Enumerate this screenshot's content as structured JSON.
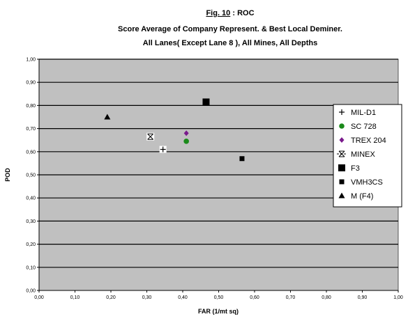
{
  "chart_data": {
    "type": "scatter",
    "title_prefix": "Fig. 10",
    "title_suffix": " : ROC",
    "subtitle_lines": [
      "Score Average of Company Represent. & Best Local Deminer.",
      "All Lanes( Except Lane 8 ), All Mines, All Depths"
    ],
    "xlabel": "FAR (1/mt sq)",
    "ylabel": "POD",
    "xlim": [
      0,
      1
    ],
    "ylim": [
      0,
      1
    ],
    "x_ticks": [
      "0,00",
      "0,10",
      "0,20",
      "0,30",
      "0,40",
      "0,50",
      "0,60",
      "0,70",
      "0,80",
      "0,90",
      "1,00"
    ],
    "y_ticks": [
      "0,00",
      "0,10",
      "0,20",
      "0,30",
      "0,40",
      "0,50",
      "0,60",
      "0,70",
      "0,80",
      "0,90",
      "1,00"
    ],
    "grid": "horizontal",
    "plot_background": "#c0c0c0",
    "legend_position": "right",
    "series": [
      {
        "name": "MIL-D1",
        "marker": "plus",
        "color": "#000000",
        "x": 0.345,
        "y": 0.61
      },
      {
        "name": "SC 728",
        "marker": "circle",
        "color": "#1a8a1a",
        "x": 0.41,
        "y": 0.645
      },
      {
        "name": "TREX 204",
        "marker": "diamond",
        "color": "#7a1a8c",
        "x": 0.41,
        "y": 0.68
      },
      {
        "name": "MINEX",
        "marker": "star",
        "color": "#000000",
        "x": 0.31,
        "y": 0.665
      },
      {
        "name": "F3",
        "marker": "square-lg",
        "color": "#000000",
        "x": 0.465,
        "y": 0.815
      },
      {
        "name": "VMH3CS",
        "marker": "square",
        "color": "#000000",
        "x": 0.565,
        "y": 0.57
      },
      {
        "name": "M (F4)",
        "marker": "triangle",
        "color": "#000000",
        "x": 0.19,
        "y": 0.75
      }
    ]
  }
}
